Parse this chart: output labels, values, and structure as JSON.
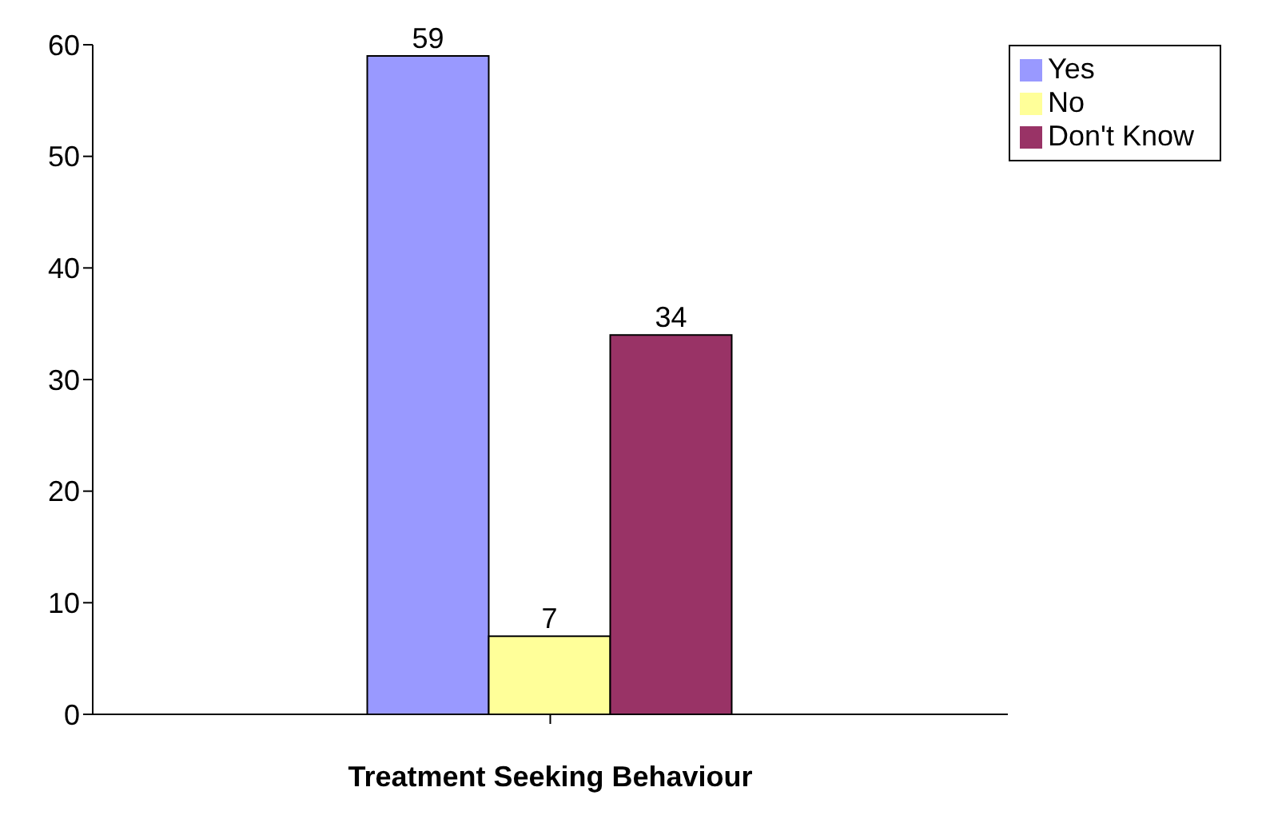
{
  "chart_data": {
    "type": "bar",
    "xlabel": "Treatment Seeking Behaviour",
    "categories": [
      null
    ],
    "series": [
      {
        "name": "Yes",
        "color": "#9999ff",
        "values": [
          59
        ]
      },
      {
        "name": "No",
        "color": "#ffff99",
        "values": [
          7
        ]
      },
      {
        "name": "Don't Know",
        "color": "#993366",
        "values": [
          34
        ]
      }
    ],
    "ylim": [
      0,
      60
    ],
    "yticks": [
      0,
      10,
      20,
      30,
      40,
      50,
      60
    ],
    "grid": false,
    "legend": "top right",
    "data_labels": true
  }
}
